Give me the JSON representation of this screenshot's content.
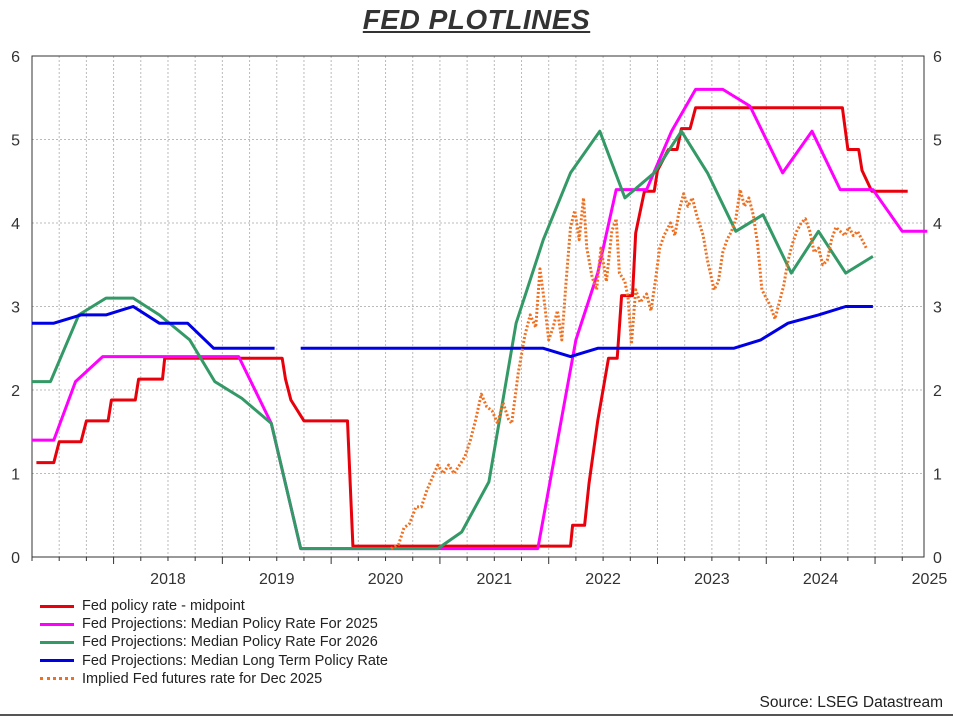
{
  "chart_data": {
    "type": "line",
    "title": "FED PLOTLINES",
    "source": "Source: LSEG Datastream",
    "x_range": [
      2017.25,
      2025.45
    ],
    "y_range": [
      0,
      6
    ],
    "y_ticks": [
      "0",
      "1",
      "2",
      "3",
      "4",
      "5",
      "6"
    ],
    "x_tick_labels": [
      "2018",
      "2019",
      "2020",
      "2021",
      "2022",
      "2023",
      "2024",
      "2025"
    ],
    "x_label_positions": [
      2018,
      2019,
      2020,
      2021,
      2022,
      2023,
      2024,
      2025
    ],
    "grid": true,
    "legend_position": "bottom-left",
    "series": [
      {
        "name": "Fed policy rate - midpoint",
        "color": "#e8000b",
        "style": "solid",
        "points": [
          [
            2017.29,
            1.13
          ],
          [
            2017.45,
            1.13
          ],
          [
            2017.5,
            1.38
          ],
          [
            2017.7,
            1.38
          ],
          [
            2017.75,
            1.63
          ],
          [
            2017.95,
            1.63
          ],
          [
            2017.98,
            1.88
          ],
          [
            2018.2,
            1.88
          ],
          [
            2018.23,
            2.13
          ],
          [
            2018.45,
            2.13
          ],
          [
            2018.47,
            2.38
          ],
          [
            2019.55,
            2.38
          ],
          [
            2019.58,
            2.13
          ],
          [
            2019.63,
            1.88
          ],
          [
            2019.75,
            1.63
          ],
          [
            2020.15,
            1.63
          ],
          [
            2020.2,
            0.13
          ],
          [
            2021.2,
            0.13
          ],
          [
            2022.2,
            0.13
          ],
          [
            2022.22,
            0.38
          ],
          [
            2022.33,
            0.38
          ],
          [
            2022.37,
            0.88
          ],
          [
            2022.45,
            1.63
          ],
          [
            2022.55,
            2.38
          ],
          [
            2022.63,
            2.38
          ],
          [
            2022.67,
            3.13
          ],
          [
            2022.77,
            3.13
          ],
          [
            2022.8,
            3.88
          ],
          [
            2022.88,
            4.38
          ],
          [
            2022.97,
            4.38
          ],
          [
            2023.0,
            4.63
          ],
          [
            2023.1,
            4.88
          ],
          [
            2023.18,
            4.88
          ],
          [
            2023.22,
            5.13
          ],
          [
            2023.3,
            5.13
          ],
          [
            2023.35,
            5.38
          ],
          [
            2024.7,
            5.38
          ],
          [
            2024.75,
            4.88
          ],
          [
            2024.85,
            4.88
          ],
          [
            2024.88,
            4.63
          ],
          [
            2024.97,
            4.38
          ],
          [
            2025.3,
            4.38
          ]
        ]
      },
      {
        "name": "Fed Projections: Median Policy Rate For 2025",
        "color": "#ff00ff",
        "style": "solid",
        "points": [
          [
            2017.25,
            1.4
          ],
          [
            2017.45,
            1.4
          ],
          [
            2017.65,
            2.1
          ],
          [
            2017.9,
            2.4
          ],
          [
            2019.15,
            2.4
          ],
          [
            2019.45,
            1.6
          ],
          [
            2019.72,
            0.1
          ],
          [
            2021.0,
            0.1
          ],
          [
            2021.9,
            0.1
          ],
          [
            2022.25,
            2.6
          ],
          [
            2022.45,
            3.4
          ],
          [
            2022.62,
            4.4
          ],
          [
            2022.9,
            4.4
          ],
          [
            2023.13,
            5.1
          ],
          [
            2023.35,
            5.6
          ],
          [
            2023.6,
            5.6
          ],
          [
            2023.85,
            5.4
          ],
          [
            2024.15,
            4.6
          ],
          [
            2024.42,
            5.1
          ],
          [
            2024.68,
            4.4
          ],
          [
            2024.98,
            4.4
          ],
          [
            2025.25,
            3.9
          ],
          [
            2025.48,
            3.9
          ]
        ]
      },
      {
        "name": "Fed Projections: Median Policy Rate For 2026",
        "color": "#339966",
        "style": "solid",
        "points": [
          [
            2017.25,
            2.1
          ],
          [
            2017.42,
            2.1
          ],
          [
            2017.68,
            2.9
          ],
          [
            2017.93,
            3.1
          ],
          [
            2018.18,
            3.1
          ],
          [
            2018.42,
            2.9
          ],
          [
            2018.7,
            2.6
          ],
          [
            2018.93,
            2.1
          ],
          [
            2019.18,
            1.9
          ],
          [
            2019.45,
            1.6
          ],
          [
            2019.72,
            0.1
          ],
          [
            2020.98,
            0.1
          ],
          [
            2021.2,
            0.3
          ],
          [
            2021.45,
            0.9
          ],
          [
            2021.7,
            2.8
          ],
          [
            2021.95,
            3.8
          ],
          [
            2022.2,
            4.6
          ],
          [
            2022.47,
            5.1
          ],
          [
            2022.7,
            4.3
          ],
          [
            2022.97,
            4.6
          ],
          [
            2023.22,
            5.1
          ],
          [
            2023.46,
            4.6
          ],
          [
            2023.72,
            3.9
          ],
          [
            2023.97,
            4.1
          ],
          [
            2024.23,
            3.4
          ],
          [
            2024.48,
            3.9
          ],
          [
            2024.73,
            3.4
          ],
          [
            2024.98,
            3.6
          ]
        ]
      },
      {
        "name": "Fed Projections: Median Long Term Policy Rate",
        "color": "#0000e6",
        "style": "solid",
        "segments": [
          [
            [
              2017.25,
              2.8
            ],
            [
              2017.45,
              2.8
            ],
            [
              2017.7,
              2.9
            ],
            [
              2017.93,
              2.9
            ],
            [
              2018.18,
              3.0
            ],
            [
              2018.42,
              2.8
            ],
            [
              2018.68,
              2.8
            ],
            [
              2018.92,
              2.5
            ],
            [
              2019.48,
              2.5
            ]
          ],
          [
            [
              2019.72,
              2.5
            ],
            [
              2021.95,
              2.5
            ],
            [
              2022.2,
              2.4
            ],
            [
              2022.45,
              2.5
            ],
            [
              2023.7,
              2.5
            ],
            [
              2023.95,
              2.6
            ],
            [
              2024.2,
              2.8
            ],
            [
              2024.48,
              2.9
            ],
            [
              2024.73,
              3.0
            ],
            [
              2024.98,
              3.0
            ]
          ]
        ]
      },
      {
        "name": "Implied Fed futures rate for Dec 2025",
        "color": "#f07020",
        "style": "dotted",
        "points": [
          [
            2020.55,
            0.1
          ],
          [
            2020.62,
            0.15
          ],
          [
            2020.67,
            0.35
          ],
          [
            2020.72,
            0.4
          ],
          [
            2020.78,
            0.6
          ],
          [
            2020.83,
            0.6
          ],
          [
            2020.88,
            0.8
          ],
          [
            2020.93,
            0.95
          ],
          [
            2020.98,
            1.1
          ],
          [
            2021.03,
            1.0
          ],
          [
            2021.08,
            1.1
          ],
          [
            2021.13,
            1.0
          ],
          [
            2021.18,
            1.1
          ],
          [
            2021.23,
            1.2
          ],
          [
            2021.28,
            1.4
          ],
          [
            2021.33,
            1.65
          ],
          [
            2021.38,
            1.95
          ],
          [
            2021.43,
            1.8
          ],
          [
            2021.48,
            1.75
          ],
          [
            2021.53,
            1.6
          ],
          [
            2021.58,
            1.85
          ],
          [
            2021.63,
            1.65
          ],
          [
            2021.66,
            1.6
          ],
          [
            2021.72,
            2.2
          ],
          [
            2021.78,
            2.65
          ],
          [
            2021.83,
            2.9
          ],
          [
            2021.88,
            2.75
          ],
          [
            2021.92,
            3.45
          ],
          [
            2021.96,
            3.05
          ],
          [
            2022.0,
            2.6
          ],
          [
            2022.04,
            2.75
          ],
          [
            2022.08,
            2.95
          ],
          [
            2022.12,
            2.6
          ],
          [
            2022.16,
            3.3
          ],
          [
            2022.2,
            3.95
          ],
          [
            2022.24,
            4.15
          ],
          [
            2022.28,
            3.8
          ],
          [
            2022.32,
            4.3
          ],
          [
            2022.35,
            3.7
          ],
          [
            2022.4,
            3.35
          ],
          [
            2022.44,
            3.2
          ],
          [
            2022.48,
            3.7
          ],
          [
            2022.53,
            3.3
          ],
          [
            2022.58,
            3.9
          ],
          [
            2022.62,
            4.05
          ],
          [
            2022.65,
            3.4
          ],
          [
            2022.7,
            3.3
          ],
          [
            2022.73,
            3.1
          ],
          [
            2022.76,
            2.55
          ],
          [
            2022.8,
            3.2
          ],
          [
            2022.84,
            3.05
          ],
          [
            2022.9,
            3.15
          ],
          [
            2022.94,
            2.95
          ],
          [
            2022.98,
            3.3
          ],
          [
            2023.02,
            3.7
          ],
          [
            2023.06,
            3.85
          ],
          [
            2023.12,
            4.0
          ],
          [
            2023.16,
            3.85
          ],
          [
            2023.2,
            4.15
          ],
          [
            2023.24,
            4.35
          ],
          [
            2023.28,
            4.2
          ],
          [
            2023.32,
            4.3
          ],
          [
            2023.36,
            4.1
          ],
          [
            2023.42,
            3.85
          ],
          [
            2023.46,
            3.55
          ],
          [
            2023.52,
            3.2
          ],
          [
            2023.56,
            3.3
          ],
          [
            2023.6,
            3.65
          ],
          [
            2023.64,
            3.8
          ],
          [
            2023.68,
            3.9
          ],
          [
            2023.72,
            4.05
          ],
          [
            2023.76,
            4.4
          ],
          [
            2023.8,
            4.2
          ],
          [
            2023.84,
            4.3
          ],
          [
            2023.88,
            4.1
          ],
          [
            2023.92,
            3.75
          ],
          [
            2023.96,
            3.2
          ],
          [
            2024.0,
            3.1
          ],
          [
            2024.04,
            3.0
          ],
          [
            2024.08,
            2.85
          ],
          [
            2024.12,
            3.05
          ],
          [
            2024.16,
            3.25
          ],
          [
            2024.2,
            3.55
          ],
          [
            2024.24,
            3.75
          ],
          [
            2024.28,
            3.9
          ],
          [
            2024.32,
            4.0
          ],
          [
            2024.36,
            4.05
          ],
          [
            2024.4,
            3.9
          ],
          [
            2024.44,
            3.65
          ],
          [
            2024.48,
            3.7
          ],
          [
            2024.52,
            3.5
          ],
          [
            2024.56,
            3.55
          ],
          [
            2024.6,
            3.8
          ],
          [
            2024.64,
            3.95
          ],
          [
            2024.68,
            3.9
          ],
          [
            2024.72,
            3.85
          ],
          [
            2024.76,
            3.95
          ],
          [
            2024.8,
            3.85
          ],
          [
            2024.84,
            3.9
          ],
          [
            2024.88,
            3.8
          ],
          [
            2024.92,
            3.7
          ]
        ]
      }
    ]
  }
}
